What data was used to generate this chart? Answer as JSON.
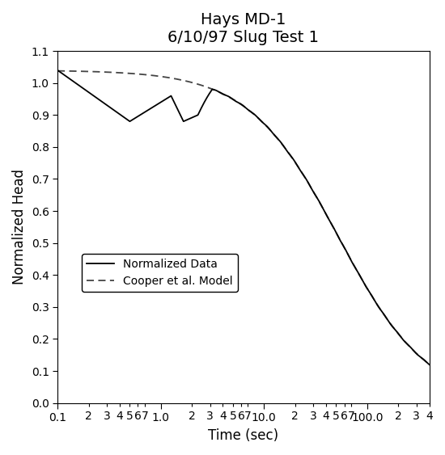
{
  "title_line1": "Hays MD-1",
  "title_line2": "6/10/97 Slug Test 1",
  "xlabel": "Time (sec)",
  "ylabel": "Normalized Head",
  "xlim": [
    0.1,
    400
  ],
  "ylim": [
    0.0,
    1.1
  ],
  "yticks": [
    0.0,
    0.1,
    0.2,
    0.3,
    0.4,
    0.5,
    0.6,
    0.7,
    0.8,
    0.9,
    1.0,
    1.1
  ],
  "legend_labels": [
    "Normalized Data",
    "Cooper et al. Model"
  ],
  "bg_color": "#ffffff",
  "line_color": "#000000",
  "dashed_color": "#444444",
  "title_fontsize": 14,
  "label_fontsize": 12,
  "tick_fontsize": 10
}
